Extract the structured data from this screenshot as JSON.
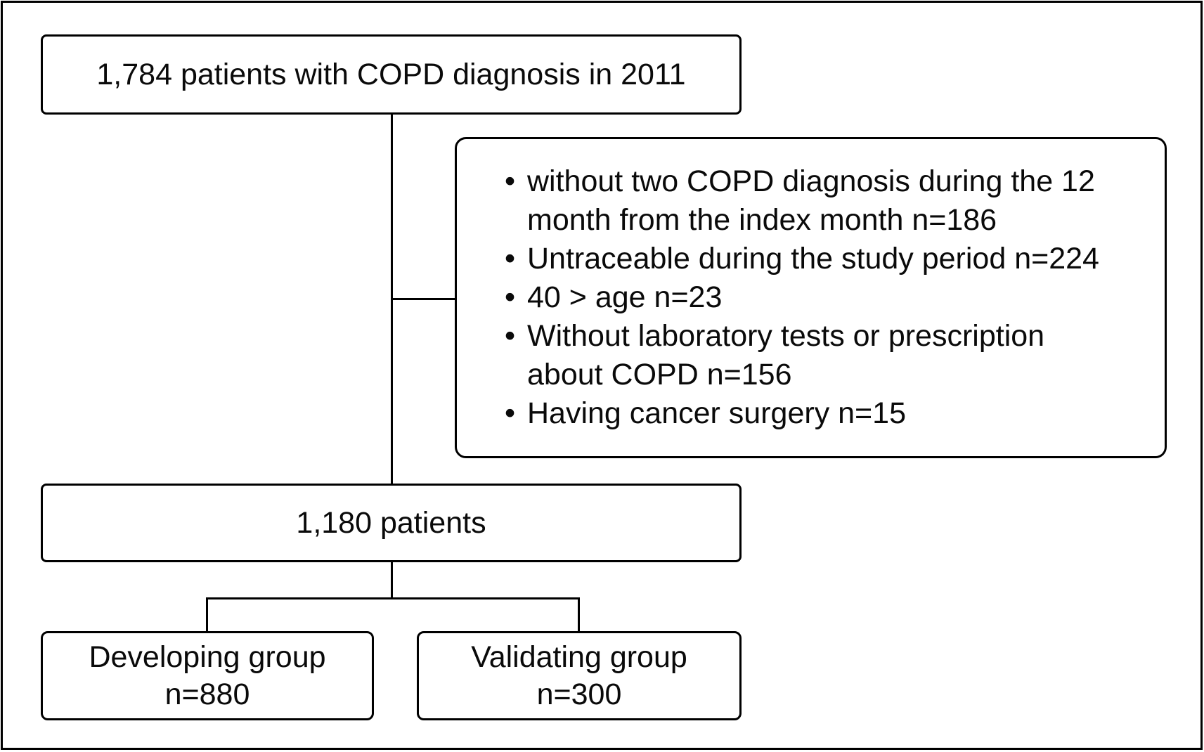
{
  "diagram": {
    "type": "patient-flow-chart",
    "colors": {
      "line": "#000000",
      "background": "#ffffff",
      "text": "#0a0a0a"
    },
    "initial_box": {
      "label": "1,784 patients with COPD diagnosis in 2011"
    },
    "exclusion_box": {
      "items": [
        "without two COPD diagnosis during the 12 month from the index month n=186",
        "Untraceable during the study period n=224",
        "40 > age n=23",
        "Without laboratory tests or prescription about COPD n=156",
        "Having cancer surgery n=15"
      ]
    },
    "included_box": {
      "label": "1,180 patients"
    },
    "developing_box": {
      "title": "Developing group",
      "count": "n=880"
    },
    "validating_box": {
      "title": "Validating group",
      "count": "n=300"
    }
  }
}
